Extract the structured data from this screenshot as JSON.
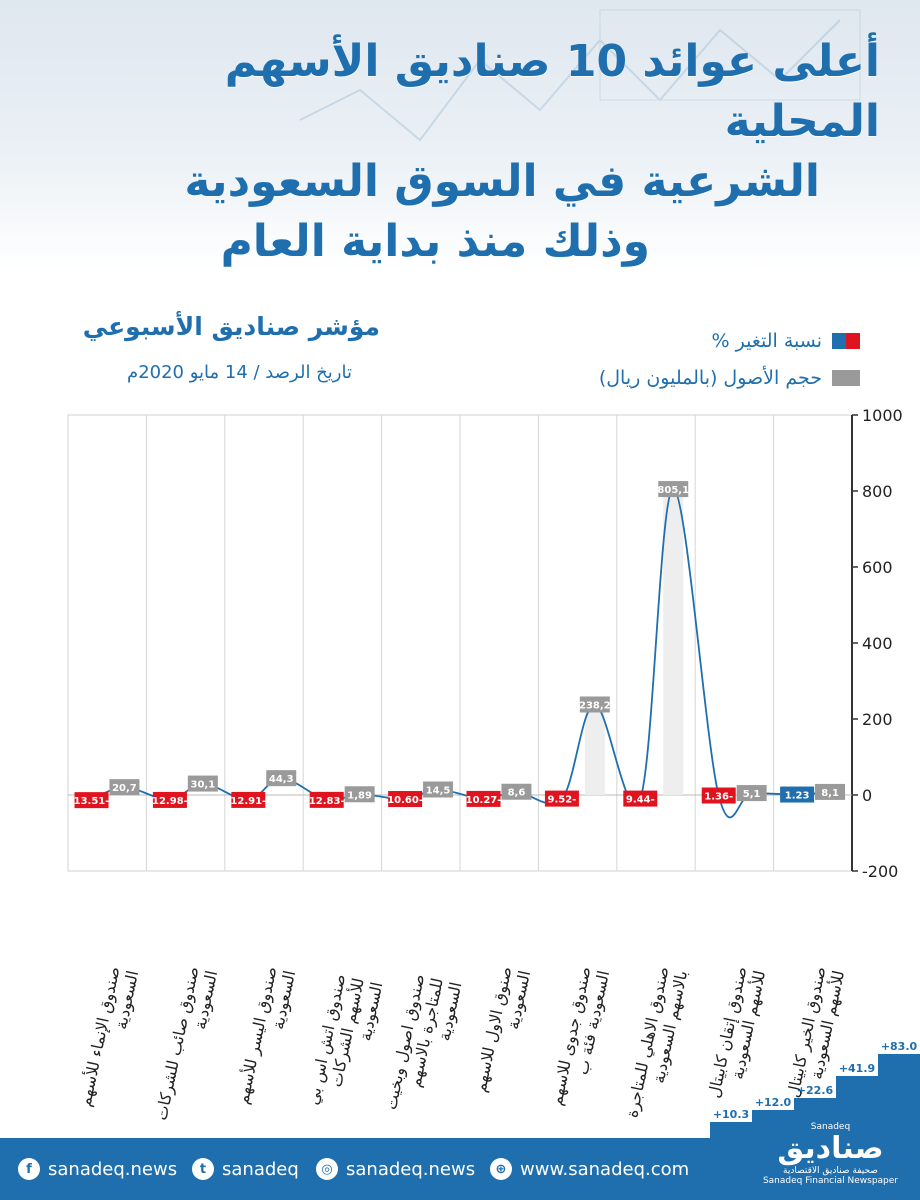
{
  "title_lines": [
    "أعلى عوائد 10 صناديق الأسهم المحلية",
    "الشرعية في السوق السعودية",
    "وذلك منذ بداية العام"
  ],
  "chart_header": {
    "title": "مؤشر صناديق الأسبوعي",
    "date": "تاريخ الرصد / 14 مايو 2020م"
  },
  "legend": {
    "change_label": "نسبة التغير %",
    "assets_label": "حجم الأصول (بالمليون ريال)"
  },
  "colors": {
    "brand_blue": "#1f6fae",
    "negative_red": "#e0141e",
    "asset_gray": "#9a9a9a"
  },
  "chart_data": {
    "type": "line",
    "ylim": [
      -200,
      1000
    ],
    "yticks": [
      "1000",
      "800",
      "600",
      "400",
      "200",
      "0",
      "-200"
    ],
    "grid": true,
    "categories": [
      "صندوق الإنماء للأسهم السعودية",
      "صندوق صائب للشركات السعودية",
      "صندوق اليسر للأسهم السعودية",
      "صندوق اتش اس بي للأسهم الشركات السعودية",
      "صندوق اصول وبخيت للمتاجرة بالاسهم السعودية",
      "صنوق الاول للاسهم السعودية",
      "صندوق جدوى للاسهم السعودية فئة ب",
      "صندوق الاهلي للمتاجرة بالاسهم السعودية",
      "صندوق إتقان كابيتال للأسهم السعودية",
      "صندوق الخير كابيتال للأسهم السعودية"
    ],
    "series": [
      {
        "name": "نسبة التغير %",
        "values": [
          -13.51,
          -12.98,
          -12.91,
          -12.83,
          -10.6,
          -10.27,
          -9.52,
          -9.44,
          -1.36,
          1.23
        ],
        "labels": [
          "13.51-",
          "12.98-",
          "12.91-",
          "12.83-",
          "10.60-",
          "10.27-",
          "9.52-",
          "9.44-",
          "1.36-",
          "1.23"
        ]
      },
      {
        "name": "حجم الأصول (بالمليون ريال)",
        "values": [
          20.7,
          30.1,
          44.3,
          1.89,
          14.5,
          8.6,
          238.2,
          805.1,
          5.1,
          8.1
        ],
        "labels": [
          "20,7",
          "30,1",
          "44,3",
          "1,89",
          "14,5",
          "8,6",
          "238,2",
          "805,1",
          "5,1",
          "8,1"
        ]
      }
    ]
  },
  "steps": [
    "+10.3",
    "+12.0",
    "+22.6",
    "+41.9",
    "+83.0"
  ],
  "footer": {
    "facebook": "sanadeq.news",
    "twitter": "sanadeq",
    "instagram": "sanadeq.news",
    "website": "www.sanadeq.com",
    "brand_latin": "Sanadeq",
    "brand_arabic": "صناديق",
    "brand_tagline_ar": "صحيفة صناديق الاقتصادية",
    "brand_tagline_en": "Sanadeq Financial Newspaper"
  }
}
